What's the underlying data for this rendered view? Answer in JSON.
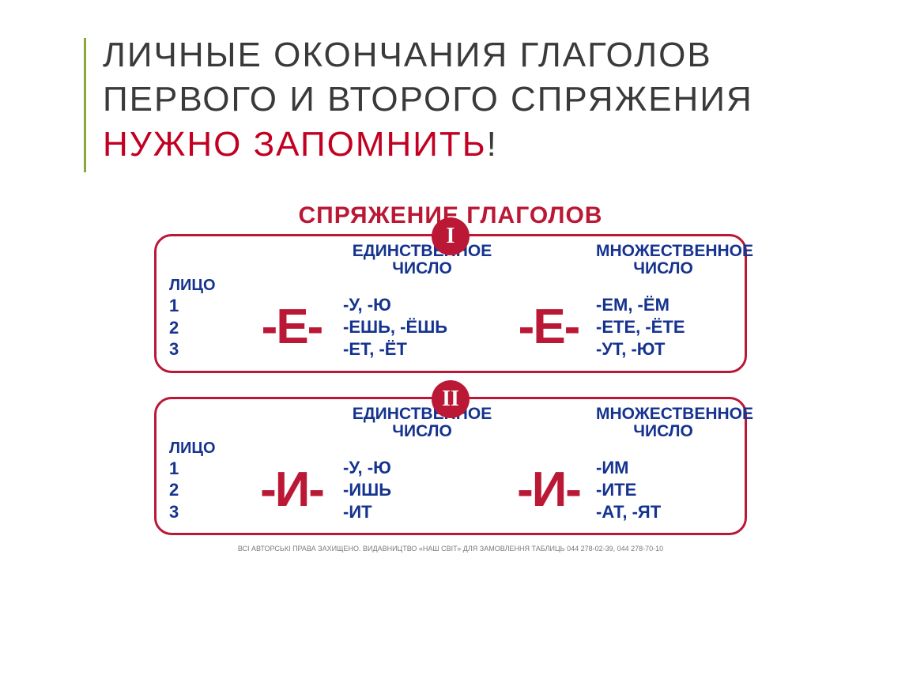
{
  "title": {
    "line1": "ЛИЧНЫЕ ОКОНЧАНИЯ ГЛАГОЛОВ",
    "line2": "ПЕРВОГО И ВТОРОГО СПРЯЖЕНИЯ",
    "line3_em": "НУЖНО ЗАПОМНИТЬ",
    "line3_tail": "!"
  },
  "colors": {
    "accent_bar": "#8aa83a",
    "title_text": "#3a3a3a",
    "title_em": "#c20022",
    "brand_red": "#ba1835",
    "brand_blue": "#15338f",
    "background": "#ffffff"
  },
  "chart": {
    "title": "СПРЯЖЕНИЕ ГЛАГОЛОВ",
    "header_lico": "ЛИЦО",
    "header_sing_l1": "ЕДИНСТВЕННОЕ",
    "header_sing_l2": "ЧИСЛО",
    "header_plur_l1": "МНОЖЕСТВЕННОЕ",
    "header_plur_l2": "ЧИСЛО",
    "persons": {
      "p1": "1",
      "p2": "2",
      "p3": "3"
    },
    "panel1": {
      "roman": "I",
      "big_letter": "-Е-",
      "sing": {
        "r1": "-У, -Ю",
        "r2": "-ЕШЬ, -ЁШЬ",
        "r3": "-ЕТ, -ЁТ"
      },
      "plur": {
        "r1": "-ЕМ, -ЁМ",
        "r2": "-ЕТЕ, -ЁТЕ",
        "r3": "-УТ, -ЮТ"
      }
    },
    "panel2": {
      "roman": "II",
      "big_letter": "-И-",
      "sing": {
        "r1": "-У, -Ю",
        "r2": "-ИШЬ",
        "r3": "-ИТ"
      },
      "plur": {
        "r1": "-ИМ",
        "r2": "-ИТЕ",
        "r3": "-АТ, -ЯТ"
      }
    }
  },
  "copyright": "ВСІ АВТОРСЬКІ ПРАВА ЗАХИЩЕНО. ВИДАВНИЦТВО «НАШ СВІТ» ДЛЯ ЗАМОВЛЕННЯ ТАБЛИЦЬ 044 278-02-39, 044 278-70-10"
}
